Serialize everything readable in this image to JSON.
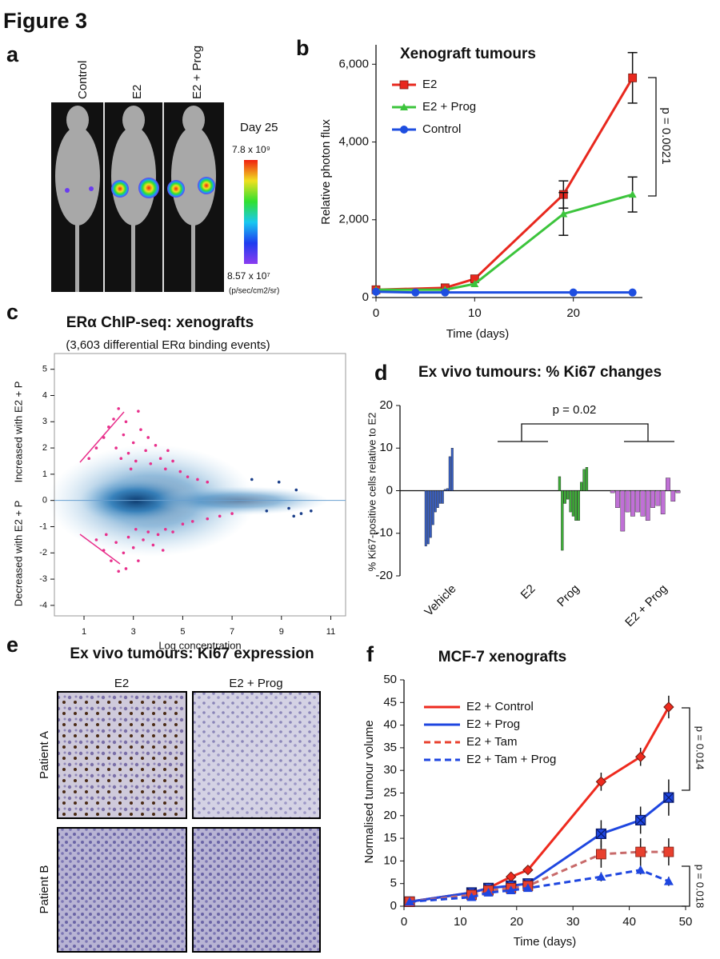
{
  "figure_title": "Figure 3",
  "panel_labels": [
    "a",
    "b",
    "c",
    "d",
    "e",
    "f"
  ],
  "panel_a": {
    "columns": [
      "Control",
      "E2",
      "E2 + Prog"
    ],
    "day": "Day 25",
    "scale_max": "7.8 x 10⁹",
    "scale_min": "8.57 x 10⁷",
    "units": "(p/sec/cm2/sr)"
  },
  "panel_e": {
    "title": "Ex vivo tumours: Ki67 expression",
    "columns": [
      "E2",
      "E2 + Prog"
    ],
    "rows": [
      "Patient A",
      "Patient B"
    ]
  },
  "chart_data": [
    {
      "type": "line",
      "title": "Xenograft tumours",
      "xlabel": "Time (days)",
      "ylabel": "Relative photon flux",
      "xlim": [
        0,
        27
      ],
      "xticks": [
        0,
        10,
        20
      ],
      "ylim": [
        0,
        6500
      ],
      "yticks": [
        0,
        {
          "value": 2000,
          "label": "2,000"
        },
        {
          "value": 4000,
          "label": "4,000"
        },
        {
          "value": 6000,
          "label": "6,000"
        }
      ],
      "legend": "upper left",
      "annotations": [
        "p = 0.0021"
      ],
      "series": [
        {
          "name": "E2",
          "color": "#e8281e",
          "marker": "square",
          "x": [
            0,
            7,
            10,
            19,
            26
          ],
          "values": [
            200,
            250,
            480,
            2650,
            5650
          ],
          "errors": [
            null,
            null,
            null,
            350,
            650
          ]
        },
        {
          "name": "E2 + Prog",
          "color": "#3cc43c",
          "marker": "triangle",
          "x": [
            0,
            7,
            10,
            19,
            26
          ],
          "values": [
            200,
            200,
            350,
            2150,
            2650
          ],
          "errors": [
            null,
            null,
            null,
            550,
            450
          ]
        },
        {
          "name": "Control",
          "color": "#1e4ee0",
          "marker": "circle",
          "x": [
            0,
            4,
            7,
            20,
            26
          ],
          "values": [
            150,
            130,
            130,
            130,
            130
          ],
          "errors": [
            null,
            null,
            null,
            null,
            null
          ]
        }
      ]
    },
    {
      "type": "scatter",
      "title": "ERα ChIP-seq: xenografts",
      "subtitle": "(3,603 differential ERα binding events)",
      "xlabel": "Log concentration",
      "ylabel_upper": "Increased with E2 + P",
      "ylabel_lower": "Decreased with E2 + P",
      "xlim": [
        -0.2,
        11.6
      ],
      "xticks": [
        1,
        3,
        5,
        7,
        9,
        11
      ],
      "ylim": [
        -4.4,
        5.6
      ],
      "yticks": [
        -4,
        -3,
        -2,
        -1,
        0,
        1,
        2,
        3,
        4,
        5
      ],
      "series": [
        {
          "color": "#e8308c",
          "x": [
            1.2,
            1.5,
            1.8,
            2.0,
            2.2,
            2.4,
            2.3,
            2.6,
            2.8,
            3.0,
            3.1,
            3.3,
            3.5,
            3.7,
            3.9,
            4.1,
            4.3,
            4.6,
            4.9,
            5.2,
            2.7,
            3.2,
            2.5,
            3.6,
            4.4,
            5.6,
            6.0,
            2.9,
            1.5,
            1.8,
            2.1,
            2.4,
            2.3,
            2.6,
            2.8,
            3.0,
            3.2,
            3.4,
            3.6,
            3.8,
            4.0,
            4.3,
            4.6,
            5.0,
            5.4,
            6.0,
            2.7,
            3.1,
            4.2,
            6.5,
            7.0,
            1.9
          ],
          "y": [
            1.6,
            2.0,
            2.4,
            2.8,
            3.1,
            3.5,
            2.0,
            2.5,
            1.8,
            2.2,
            1.5,
            2.7,
            1.9,
            1.4,
            2.1,
            1.6,
            1.2,
            1.5,
            1.1,
            0.9,
            3.0,
            3.4,
            1.6,
            2.4,
            1.9,
            0.8,
            0.7,
            1.2,
            -1.5,
            -1.9,
            -2.3,
            -2.7,
            -1.6,
            -2.0,
            -1.4,
            -1.8,
            -2.3,
            -1.5,
            -1.2,
            -1.7,
            -1.3,
            -1.1,
            -1.2,
            -0.9,
            -0.8,
            -0.7,
            -2.6,
            -1.1,
            -1.9,
            -0.6,
            -0.5,
            -1.3
          ]
        },
        {
          "color": "#1b3f8a",
          "x": [
            8.9,
            9.3,
            9.5,
            9.8,
            10.2,
            9.6,
            7.8,
            8.4
          ],
          "y": [
            0.7,
            -0.3,
            -0.6,
            -0.5,
            -0.4,
            0.4,
            0.8,
            -0.4
          ]
        }
      ]
    },
    {
      "type": "bar",
      "title": "Ex vivo tumours: % Ki67 changes",
      "ylabel": "% Ki67-positive cells relative to E2",
      "categories": [
        "Vehicle",
        "E2",
        "Prog",
        "E2 + Prog"
      ],
      "ylim": [
        -20,
        20
      ],
      "yticks": [
        -20,
        -10,
        0,
        10,
        20
      ],
      "annotations": [
        "p = 0.02"
      ],
      "groups": [
        {
          "color": "#3a62c8",
          "values": [
            -13,
            -12.5,
            -11,
            -8,
            -5,
            -4,
            -3,
            -3,
            0.3,
            0.5,
            8,
            10
          ]
        },
        {
          "values": []
        },
        {
          "color": "#3eae38",
          "values": [
            3.3,
            -14,
            -3,
            -2,
            -5,
            -6,
            -7,
            -7,
            2,
            5,
            5.5
          ]
        },
        {
          "color": "#c070d6",
          "values": [
            -0.5,
            -4,
            -9.5,
            -5,
            -6,
            -5,
            -6,
            -7,
            -4,
            -3.5,
            -5.5,
            3,
            -2.5,
            -0.5
          ]
        }
      ]
    },
    {
      "type": "line",
      "title": "MCF-7 xenografts",
      "xlabel": "Time (days)",
      "ylabel": "Normalised tumour volume",
      "xlim": [
        0,
        50
      ],
      "xticks": [
        0,
        10,
        20,
        30,
        40,
        50
      ],
      "ylim": [
        0,
        50
      ],
      "yticks": [
        0,
        5,
        10,
        15,
        20,
        25,
        30,
        35,
        40,
        45,
        50
      ],
      "legend": "upper left",
      "annotations": [
        "p = 0.014",
        "p = 0.018"
      ],
      "series": [
        {
          "name": "E2 + Control",
          "color": "#ee2a1e",
          "marker": "diamond",
          "dash": false,
          "x": [
            1,
            12,
            15,
            19,
            22,
            35,
            42,
            47
          ],
          "values": [
            1,
            3,
            4,
            6.5,
            8,
            27.5,
            33,
            44
          ],
          "errors": [
            null,
            null,
            null,
            null,
            null,
            2,
            2,
            2.5
          ]
        },
        {
          "name": "E2 + Prog",
          "color": "#1e46e0",
          "marker": "squarex",
          "dash": false,
          "x": [
            1,
            12,
            15,
            19,
            22,
            35,
            42,
            47
          ],
          "values": [
            1,
            3,
            4,
            4.5,
            5,
            16,
            19,
            24
          ],
          "errors": [
            null,
            null,
            null,
            null,
            null,
            3,
            3,
            4
          ]
        },
        {
          "name": "E2 + Tam",
          "color": "#e8402e",
          "marker": "square",
          "dash": true,
          "x": [
            1,
            12,
            15,
            19,
            22,
            35,
            42,
            47
          ],
          "values": [
            1,
            2.5,
            3.5,
            4,
            4.5,
            11.5,
            12,
            12
          ],
          "errors": [
            null,
            null,
            null,
            null,
            null,
            3,
            3,
            3
          ]
        },
        {
          "name": "E2 + Tam + Prog",
          "color": "#1e46e0",
          "marker": "triangle",
          "dash": true,
          "x": [
            1,
            12,
            15,
            19,
            22,
            35,
            42,
            47
          ],
          "values": [
            1,
            2,
            3,
            3.5,
            4,
            6.5,
            8,
            5.5
          ],
          "errors": [
            null,
            null,
            null,
            null,
            null,
            1,
            1,
            1
          ]
        }
      ]
    }
  ]
}
